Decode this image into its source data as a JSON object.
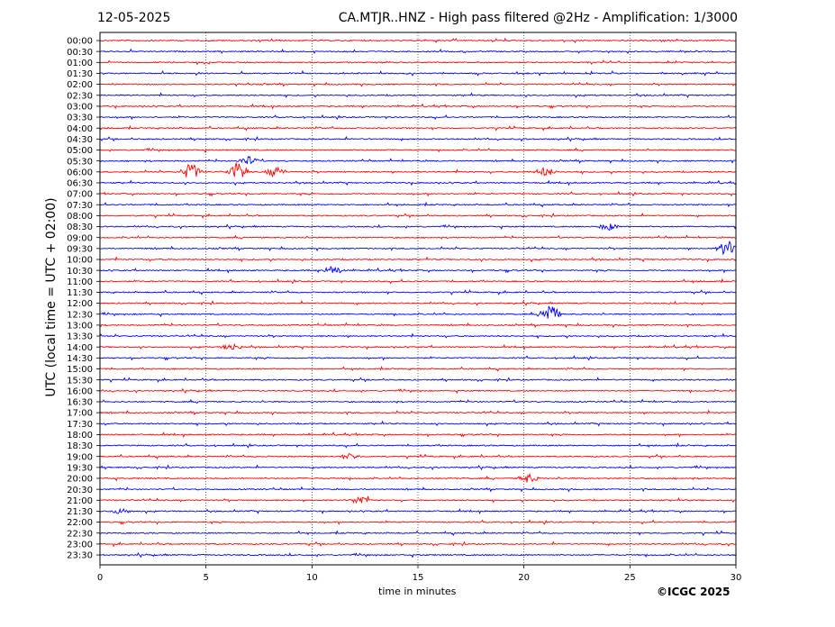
{
  "header": {
    "date": "12-05-2025",
    "title": "CA.MTJR..HNZ - High pass filtered @2Hz - Amplification: 1/3000"
  },
  "footer": {
    "copyright": "©ICGC 2025"
  },
  "chart_data": {
    "type": "line",
    "title": "CA.MTJR..HNZ - High pass filtered @2Hz - Amplification: 1/3000",
    "xlabel": "time in minutes",
    "ylabel": "UTC (local time = UTC + 02:00)",
    "xlim": [
      0,
      30
    ],
    "xticks": [
      "0",
      "5",
      "10",
      "15",
      "20",
      "25",
      "30"
    ],
    "grid": "vertical dotted at 5-minute ticks",
    "colors": {
      "red": "#ff0000",
      "blue": "#0000ff"
    },
    "rows": [
      {
        "label": "00:00",
        "color": "red"
      },
      {
        "label": "00:30",
        "color": "blue"
      },
      {
        "label": "01:00",
        "color": "red"
      },
      {
        "label": "01:30",
        "color": "blue"
      },
      {
        "label": "02:00",
        "color": "red"
      },
      {
        "label": "02:30",
        "color": "blue"
      },
      {
        "label": "03:00",
        "color": "red"
      },
      {
        "label": "03:30",
        "color": "blue"
      },
      {
        "label": "04:00",
        "color": "red"
      },
      {
        "label": "04:30",
        "color": "blue"
      },
      {
        "label": "05:00",
        "color": "red"
      },
      {
        "label": "05:30",
        "color": "blue"
      },
      {
        "label": "06:00",
        "color": "red"
      },
      {
        "label": "06:30",
        "color": "blue"
      },
      {
        "label": "07:00",
        "color": "red"
      },
      {
        "label": "07:30",
        "color": "blue"
      },
      {
        "label": "08:00",
        "color": "red"
      },
      {
        "label": "08:30",
        "color": "blue"
      },
      {
        "label": "09:00",
        "color": "red"
      },
      {
        "label": "09:30",
        "color": "blue"
      },
      {
        "label": "10:00",
        "color": "red"
      },
      {
        "label": "10:30",
        "color": "blue"
      },
      {
        "label": "11:00",
        "color": "red"
      },
      {
        "label": "11:30",
        "color": "blue"
      },
      {
        "label": "12:00",
        "color": "red"
      },
      {
        "label": "12:30",
        "color": "blue"
      },
      {
        "label": "13:00",
        "color": "red"
      },
      {
        "label": "13:30",
        "color": "blue"
      },
      {
        "label": "14:00",
        "color": "red"
      },
      {
        "label": "14:30",
        "color": "blue"
      },
      {
        "label": "15:00",
        "color": "red"
      },
      {
        "label": "15:30",
        "color": "blue"
      },
      {
        "label": "16:00",
        "color": "red"
      },
      {
        "label": "16:30",
        "color": "blue"
      },
      {
        "label": "17:00",
        "color": "red"
      },
      {
        "label": "17:30",
        "color": "blue"
      },
      {
        "label": "18:00",
        "color": "red"
      },
      {
        "label": "18:30",
        "color": "blue"
      },
      {
        "label": "19:00",
        "color": "red"
      },
      {
        "label": "19:30",
        "color": "blue"
      },
      {
        "label": "20:00",
        "color": "red"
      },
      {
        "label": "20:30",
        "color": "blue"
      },
      {
        "label": "21:00",
        "color": "red"
      },
      {
        "label": "21:30",
        "color": "blue"
      },
      {
        "label": "22:00",
        "color": "red"
      },
      {
        "label": "22:30",
        "color": "blue"
      },
      {
        "label": "23:00",
        "color": "red"
      },
      {
        "label": "23:30",
        "color": "blue"
      }
    ],
    "events": [
      {
        "row": "05:30",
        "minute": 7.0,
        "amplitude": 0.5
      },
      {
        "row": "06:00",
        "minute": 4.3,
        "amplitude": 1.0
      },
      {
        "row": "06:00",
        "minute": 6.5,
        "amplitude": 1.1
      },
      {
        "row": "06:00",
        "minute": 8.3,
        "amplitude": 0.6
      },
      {
        "row": "06:00",
        "minute": 21.0,
        "amplitude": 0.5
      },
      {
        "row": "08:30",
        "minute": 24.0,
        "amplitude": 0.4
      },
      {
        "row": "09:30",
        "minute": 29.6,
        "amplitude": 0.9
      },
      {
        "row": "10:30",
        "minute": 11.0,
        "amplitude": 0.5
      },
      {
        "row": "12:30",
        "minute": 21.2,
        "amplitude": 1.2
      },
      {
        "row": "14:00",
        "minute": 6.2,
        "amplitude": 0.4
      },
      {
        "row": "19:00",
        "minute": 11.8,
        "amplitude": 0.3
      },
      {
        "row": "20:00",
        "minute": 20.2,
        "amplitude": 0.5
      },
      {
        "row": "21:00",
        "minute": 12.3,
        "amplitude": 0.5
      },
      {
        "row": "21:30",
        "minute": 1.0,
        "amplitude": 0.3
      }
    ]
  }
}
